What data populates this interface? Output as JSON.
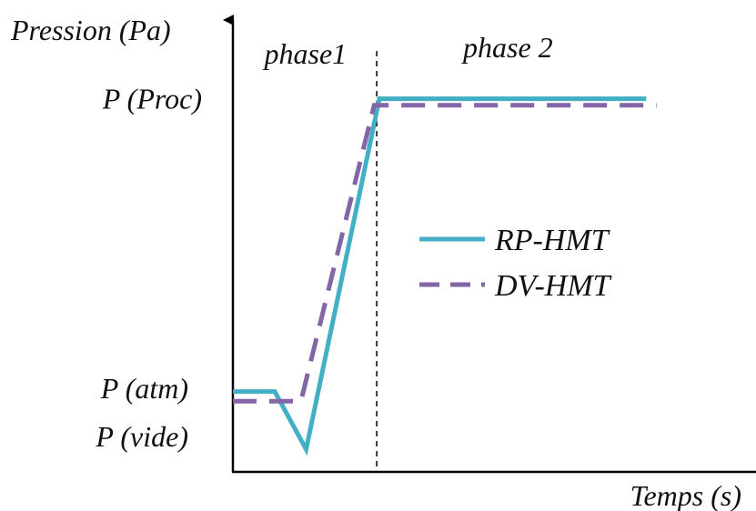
{
  "chart_data": {
    "type": "line",
    "ylabel": "Pression (Pa)",
    "xlabel": "Temps (s)",
    "yticks": [
      {
        "label": "P (Proc)",
        "value": 100
      },
      {
        "label": "P (atm)",
        "value": 10
      },
      {
        "label": "P (vide)",
        "value": -5
      }
    ],
    "phase_divider_t": 27.5,
    "phase_labels": [
      {
        "label": "phase1",
        "t": 6,
        "p": 114
      },
      {
        "label": "phase 2",
        "t": 44,
        "p": 116
      }
    ],
    "legend_position": "center-right",
    "series": [
      {
        "name": "RP-HMT",
        "style": "solid",
        "color": "#43afc4",
        "points": [
          [
            0,
            10
          ],
          [
            8,
            10
          ],
          [
            14,
            -8
          ],
          [
            28,
            101
          ],
          [
            79,
            101
          ]
        ]
      },
      {
        "name": "DV-HMT",
        "style": "dashed",
        "color": "#8366a7",
        "points": [
          [
            0,
            7
          ],
          [
            13,
            7
          ],
          [
            27,
            99
          ],
          [
            81,
            99
          ]
        ]
      }
    ],
    "xlim": [
      0,
      100
    ],
    "ylim": [
      -15,
      130
    ]
  }
}
